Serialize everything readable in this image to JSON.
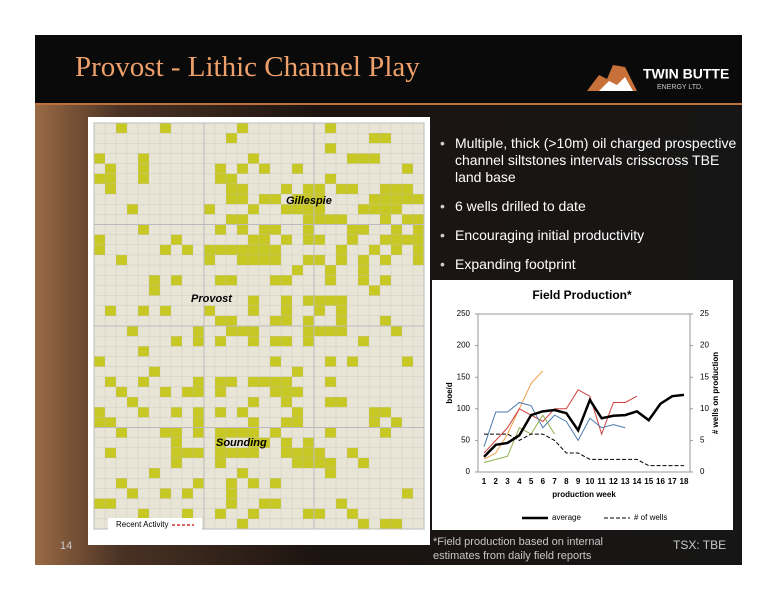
{
  "header": {
    "title": "Provost - Lithic Channel Play",
    "logo": {
      "name": "TWIN BUTTE",
      "sub": "ENERGY LTD."
    }
  },
  "map": {
    "labels": [
      "Gillespie",
      "Provost",
      "Sounding"
    ],
    "legend": "Recent Activity"
  },
  "bullets": [
    "Multiple, thick (>10m) oil charged prospective channel siltstones intervals crisscross TBE land base",
    "6 wells drilled to date",
    "Encouraging initial productivity",
    "Expanding footprint"
  ],
  "footer": {
    "page": "14",
    "note": "*Field production based on internal estimates from daily field reports",
    "ticker": "TSX: TBE"
  },
  "chart_data": {
    "type": "line",
    "title": "Field Production*",
    "x_label": "production week",
    "y_label": "boe/d",
    "y2_label": "# wells on production",
    "categories": [
      "1",
      "2",
      "3",
      "4",
      "5",
      "6",
      "7",
      "8",
      "9",
      "10",
      "11",
      "12",
      "13",
      "14",
      "15",
      "16",
      "17",
      "18"
    ],
    "ylim": [
      0,
      250
    ],
    "yticks": [
      0,
      50,
      100,
      150,
      200,
      250
    ],
    "y2lim": [
      0,
      25
    ],
    "y2ticks": [
      0,
      5,
      10,
      15,
      20,
      25
    ],
    "series": [
      {
        "color": "#f0a050",
        "values": [
          20,
          30,
          60,
          100,
          140,
          160,
          null,
          null,
          null,
          null,
          null,
          null,
          null,
          null,
          null,
          null,
          null,
          null
        ]
      },
      {
        "color": "#d04040",
        "values": [
          30,
          50,
          70,
          100,
          90,
          80,
          100,
          100,
          130,
          120,
          60,
          110,
          110,
          120,
          null,
          null,
          null,
          null
        ]
      },
      {
        "color": "#4a7ab0",
        "values": [
          40,
          95,
          95,
          110,
          105,
          70,
          90,
          80,
          50,
          85,
          70,
          75,
          70,
          null,
          null,
          null,
          null,
          null
        ]
      },
      {
        "color": "#90b050",
        "values": [
          15,
          20,
          25,
          70,
          60,
          90,
          60,
          null,
          null,
          null,
          null,
          null,
          null,
          null,
          null,
          null,
          null,
          null
        ]
      },
      {
        "name": "average",
        "color": "#000000",
        "width": 2.5,
        "values": [
          24,
          43,
          46,
          58,
          90,
          96,
          98,
          93,
          66,
          114,
          85,
          89,
          90,
          96,
          82,
          108,
          120,
          122
        ]
      },
      {
        "name": "# of wells",
        "color": "#000000",
        "dash": true,
        "axis": "y2",
        "values": [
          6,
          6,
          6,
          5,
          6,
          6,
          5,
          3,
          3,
          2,
          2,
          2,
          2,
          2,
          1,
          1,
          1,
          1
        ]
      }
    ]
  }
}
